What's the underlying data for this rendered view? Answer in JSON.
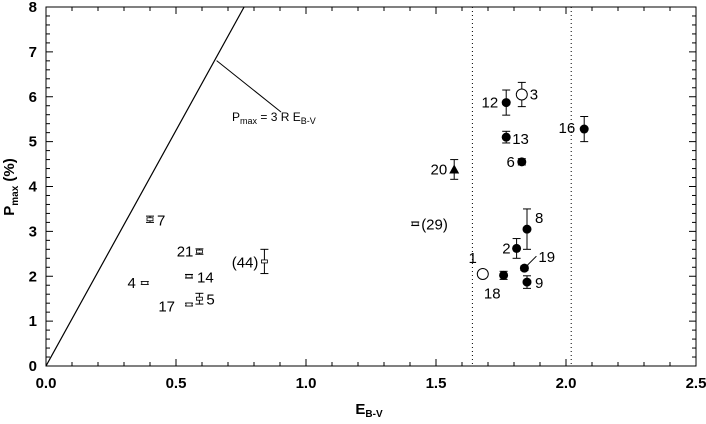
{
  "chart_data": {
    "type": "scatter",
    "title": "",
    "xlabel": {
      "main": "E",
      "sub": "B-V"
    },
    "ylabel": {
      "main": "P",
      "sub": "max",
      "suffix": " (%)"
    },
    "xlim": [
      0,
      2.5
    ],
    "ylim": [
      0,
      8
    ],
    "xticks": [
      "0.0",
      "0.5",
      "1.0",
      "1.5",
      "2.0",
      "2.5"
    ],
    "yticks": [
      "0",
      "1",
      "2",
      "3",
      "4",
      "5",
      "6",
      "7",
      "8"
    ],
    "grid": false,
    "relation": {
      "label": {
        "main": "P",
        "sub": "max",
        "middle": " = 3 R E",
        "sub2": "B-V"
      },
      "slope": 10.5
    },
    "vlines": [
      1.64,
      2.02
    ],
    "points": [
      {
        "label": "1",
        "x": 1.68,
        "y": 2.05,
        "yerr": 0.0,
        "marker": "open-circle"
      },
      {
        "label": "2",
        "x": 1.81,
        "y": 2.62,
        "yerr": 0.22,
        "marker": "filled-circle"
      },
      {
        "label": "3",
        "x": 1.83,
        "y": 6.05,
        "yerr": 0.27,
        "marker": "open-circle"
      },
      {
        "label": "4",
        "x": 0.38,
        "y": 1.85,
        "yerr": 0.03,
        "marker": "small-square"
      },
      {
        "label": "5",
        "x": 0.59,
        "y": 1.5,
        "yerr": 0.12,
        "marker": "small-square"
      },
      {
        "label": "6",
        "x": 1.83,
        "y": 4.55,
        "yerr": 0.07,
        "marker": "filled-circle"
      },
      {
        "label": "7",
        "x": 0.4,
        "y": 3.27,
        "yerr": 0.07,
        "marker": "small-square"
      },
      {
        "label": "8",
        "x": 1.85,
        "y": 3.05,
        "yerr": 0.45,
        "marker": "filled-circle"
      },
      {
        "label": "9",
        "x": 1.85,
        "y": 1.87,
        "yerr": 0.14,
        "marker": "filled-circle"
      },
      {
        "label": "12",
        "x": 1.77,
        "y": 5.87,
        "yerr": 0.28,
        "marker": "filled-circle"
      },
      {
        "label": "13",
        "x": 1.77,
        "y": 5.1,
        "yerr": 0.13,
        "marker": "filled-circle"
      },
      {
        "label": "14",
        "x": 0.55,
        "y": 2.0,
        "yerr": 0.04,
        "marker": "small-square"
      },
      {
        "label": "16",
        "x": 2.07,
        "y": 5.28,
        "yerr": 0.28,
        "marker": "filled-circle"
      },
      {
        "label": "17",
        "x": 0.55,
        "y": 1.37,
        "yerr": 0.03,
        "marker": "small-square"
      },
      {
        "label": "18",
        "x": 1.76,
        "y": 2.02,
        "yerr": 0.09,
        "marker": "filled-circle"
      },
      {
        "label": "19",
        "x": 1.84,
        "y": 2.18,
        "yerr": 0.05,
        "marker": "filled-circle"
      },
      {
        "label": "20",
        "x": 1.57,
        "y": 4.38,
        "yerr": 0.22,
        "marker": "filled-triangle"
      },
      {
        "label": "21",
        "x": 0.59,
        "y": 2.55,
        "yerr": 0.06,
        "marker": "small-square"
      },
      {
        "label": "(29)",
        "x": 1.42,
        "y": 3.17,
        "yerr": 0.04,
        "marker": "small-square"
      },
      {
        "label": "(44)",
        "x": 0.84,
        "y": 2.33,
        "yerr": 0.27,
        "marker": "small-square"
      }
    ]
  }
}
